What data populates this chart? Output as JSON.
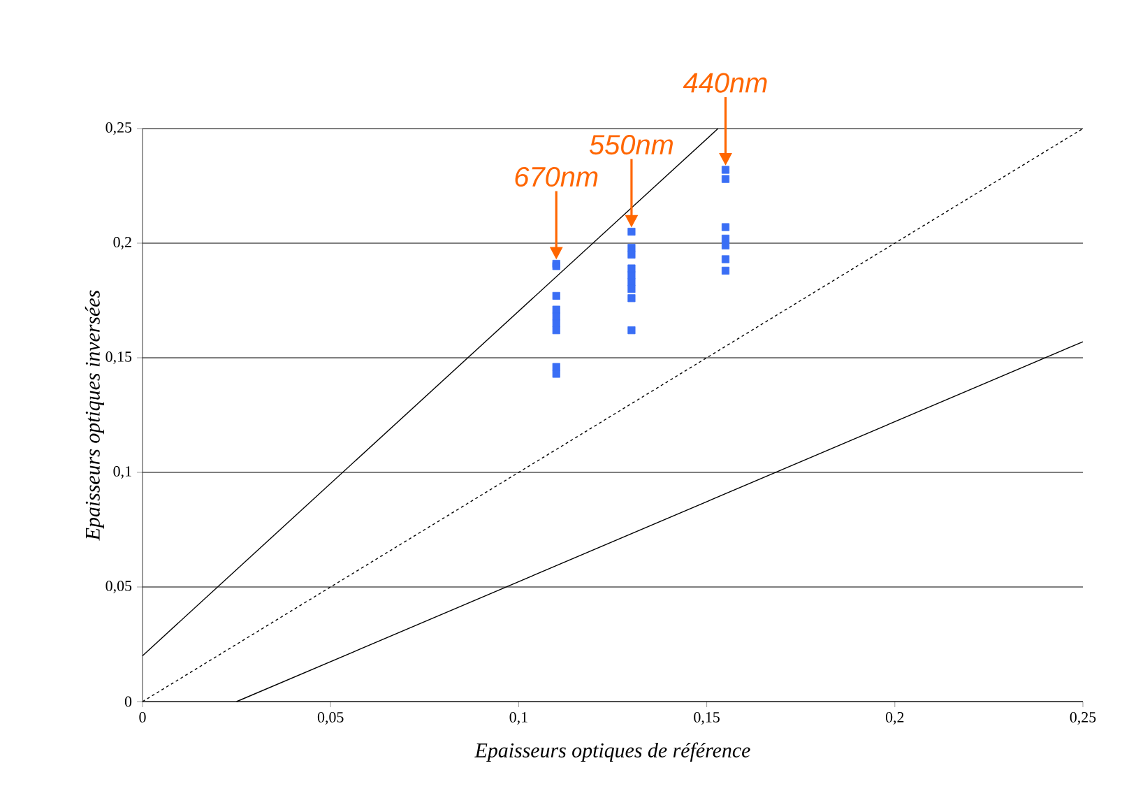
{
  "chart_data": {
    "type": "scatter",
    "xlabel": "Epaisseurs optiques de référence",
    "ylabel": "Epaisseurs optiques inversées",
    "xlim": [
      0,
      0.25
    ],
    "ylim": [
      0,
      0.25
    ],
    "xticks": [
      {
        "value": 0,
        "label": "0"
      },
      {
        "value": 0.05,
        "label": "0,05"
      },
      {
        "value": 0.1,
        "label": "0,1"
      },
      {
        "value": 0.15,
        "label": "0,15"
      },
      {
        "value": 0.2,
        "label": "0,2"
      },
      {
        "value": 0.25,
        "label": "0,25"
      }
    ],
    "yticks": [
      {
        "value": 0,
        "label": "0"
      },
      {
        "value": 0.05,
        "label": "0,05"
      },
      {
        "value": 0.1,
        "label": "0,1"
      },
      {
        "value": 0.15,
        "label": "0,15"
      },
      {
        "value": 0.2,
        "label": "0,2"
      },
      {
        "value": 0.25,
        "label": "0,25"
      }
    ],
    "grid": "y",
    "series": [
      {
        "marker": "square",
        "color": "#3a6ef5",
        "x": [
          0.11,
          0.11,
          0.11,
          0.11,
          0.11,
          0.11,
          0.11,
          0.11,
          0.11
        ],
        "values": [
          0.191,
          0.19,
          0.177,
          0.171,
          0.168,
          0.165,
          0.162,
          0.146,
          0.143
        ]
      },
      {
        "marker": "square",
        "color": "#3a6ef5",
        "x": [
          0.13,
          0.13,
          0.13,
          0.13,
          0.13,
          0.13,
          0.13,
          0.13,
          0.13
        ],
        "values": [
          0.205,
          0.198,
          0.195,
          0.189,
          0.186,
          0.183,
          0.18,
          0.176,
          0.162
        ]
      },
      {
        "marker": "square",
        "color": "#3a6ef5",
        "x": [
          0.155,
          0.155,
          0.155,
          0.155,
          0.155,
          0.155,
          0.155
        ],
        "values": [
          0.232,
          0.228,
          0.207,
          0.202,
          0.199,
          0.193,
          0.188
        ]
      },
      {
        "type": "line",
        "color": "#000000",
        "line_style": "solid",
        "x": [
          0,
          0.153
        ],
        "values": [
          0.02,
          0.25
        ]
      },
      {
        "type": "line",
        "color": "#000000",
        "line_style": "dotted",
        "x": [
          0,
          0.25
        ],
        "values": [
          0,
          0.25
        ]
      },
      {
        "type": "line",
        "color": "#000000",
        "line_style": "solid",
        "x": [
          0.025,
          0.25
        ],
        "values": [
          0,
          0.157
        ]
      }
    ],
    "annotations": [
      {
        "text": "670nm",
        "x": 0.11,
        "y": 0.191
      },
      {
        "text": "550nm",
        "x": 0.13,
        "y": 0.205
      },
      {
        "text": "440nm",
        "x": 0.155,
        "y": 0.232
      }
    ]
  }
}
